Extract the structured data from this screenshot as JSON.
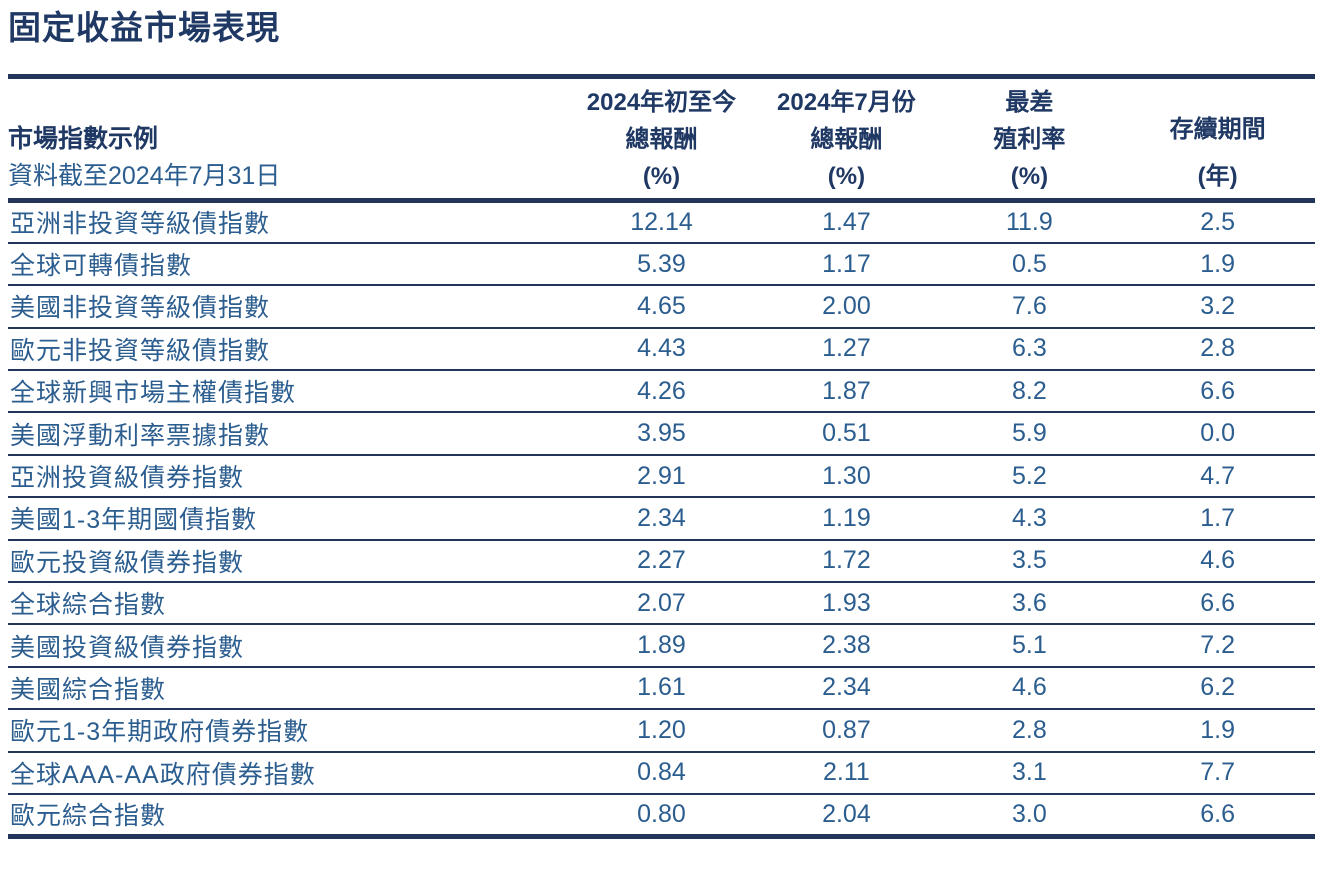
{
  "title": "固定收益市場表現",
  "colors": {
    "navy": "#1F3864",
    "line": "#24355C",
    "steel": "#2B5D8F",
    "background": "#FFFFFF"
  },
  "table": {
    "header": {
      "index_title": "市場指數示例",
      "index_subtitle": "資料截至2024年7月31日",
      "cols": [
        {
          "l1": "2024年初至今",
          "l2": "總報酬",
          "l3": "(%)"
        },
        {
          "l1": "2024年7月份",
          "l2": "總報酬",
          "l3": "(%)"
        },
        {
          "l1": "最差",
          "l2": "殖利率",
          "l3": "(%)"
        },
        {
          "l1": "",
          "l2": "存續期間",
          "l3": "(年)"
        }
      ]
    },
    "rows": [
      [
        "亞洲非投資等級債指數",
        "12.14",
        "1.47",
        "11.9",
        "2.5"
      ],
      [
        "全球可轉債指數",
        "5.39",
        "1.17",
        "0.5",
        "1.9"
      ],
      [
        "美國非投資等級債指數",
        "4.65",
        "2.00",
        "7.6",
        "3.2"
      ],
      [
        "歐元非投資等級債指數",
        "4.43",
        "1.27",
        "6.3",
        "2.8"
      ],
      [
        "全球新興市場主權債指數",
        "4.26",
        "1.87",
        "8.2",
        "6.6"
      ],
      [
        "美國浮動利率票據指數",
        "3.95",
        "0.51",
        "5.9",
        "0.0"
      ],
      [
        "亞洲投資級債券指數",
        "2.91",
        "1.30",
        "5.2",
        "4.7"
      ],
      [
        "美國1-3年期國債指數",
        "2.34",
        "1.19",
        "4.3",
        "1.7"
      ],
      [
        "歐元投資級債券指數",
        "2.27",
        "1.72",
        "3.5",
        "4.6"
      ],
      [
        "全球綜合指數",
        "2.07",
        "1.93",
        "3.6",
        "6.6"
      ],
      [
        "美國投資級債券指數",
        "1.89",
        "2.38",
        "5.1",
        "7.2"
      ],
      [
        "美國綜合指數",
        "1.61",
        "2.34",
        "4.6",
        "6.2"
      ],
      [
        "歐元1-3年期政府債券指數",
        "1.20",
        "0.87",
        "2.8",
        "1.9"
      ],
      [
        "全球AAA-AA政府債券指數",
        "0.84",
        "2.11",
        "3.1",
        "7.7"
      ],
      [
        "歐元綜合指數",
        "0.80",
        "2.04",
        "3.0",
        "6.6"
      ]
    ]
  },
  "chart_data": {
    "type": "table",
    "title": "固定收益市場表現",
    "as_of": "資料截至2024年7月31日",
    "columns": [
      "市場指數示例",
      "2024年初至今總報酬(%)",
      "2024年7月份總報酬(%)",
      "最差殖利率(%)",
      "存續期間(年)"
    ],
    "rows": [
      {
        "index": "亞洲非投資等級債指數",
        "ytd_return_pct": 12.14,
        "jul_2024_return_pct": 1.47,
        "yield_to_worst_pct": 11.9,
        "duration_years": 2.5
      },
      {
        "index": "全球可轉債指數",
        "ytd_return_pct": 5.39,
        "jul_2024_return_pct": 1.17,
        "yield_to_worst_pct": 0.5,
        "duration_years": 1.9
      },
      {
        "index": "美國非投資等級債指數",
        "ytd_return_pct": 4.65,
        "jul_2024_return_pct": 2.0,
        "yield_to_worst_pct": 7.6,
        "duration_years": 3.2
      },
      {
        "index": "歐元非投資等級債指數",
        "ytd_return_pct": 4.43,
        "jul_2024_return_pct": 1.27,
        "yield_to_worst_pct": 6.3,
        "duration_years": 2.8
      },
      {
        "index": "全球新興市場主權債指數",
        "ytd_return_pct": 4.26,
        "jul_2024_return_pct": 1.87,
        "yield_to_worst_pct": 8.2,
        "duration_years": 6.6
      },
      {
        "index": "美國浮動利率票據指數",
        "ytd_return_pct": 3.95,
        "jul_2024_return_pct": 0.51,
        "yield_to_worst_pct": 5.9,
        "duration_years": 0.0
      },
      {
        "index": "亞洲投資級債券指數",
        "ytd_return_pct": 2.91,
        "jul_2024_return_pct": 1.3,
        "yield_to_worst_pct": 5.2,
        "duration_years": 4.7
      },
      {
        "index": "美國1-3年期國債指數",
        "ytd_return_pct": 2.34,
        "jul_2024_return_pct": 1.19,
        "yield_to_worst_pct": 4.3,
        "duration_years": 1.7
      },
      {
        "index": "歐元投資級債券指數",
        "ytd_return_pct": 2.27,
        "jul_2024_return_pct": 1.72,
        "yield_to_worst_pct": 3.5,
        "duration_years": 4.6
      },
      {
        "index": "全球綜合指數",
        "ytd_return_pct": 2.07,
        "jul_2024_return_pct": 1.93,
        "yield_to_worst_pct": 3.6,
        "duration_years": 6.6
      },
      {
        "index": "美國投資級債券指數",
        "ytd_return_pct": 1.89,
        "jul_2024_return_pct": 2.38,
        "yield_to_worst_pct": 5.1,
        "duration_years": 7.2
      },
      {
        "index": "美國綜合指數",
        "ytd_return_pct": 1.61,
        "jul_2024_return_pct": 2.34,
        "yield_to_worst_pct": 4.6,
        "duration_years": 6.2
      },
      {
        "index": "歐元1-3年期政府債券指數",
        "ytd_return_pct": 1.2,
        "jul_2024_return_pct": 0.87,
        "yield_to_worst_pct": 2.8,
        "duration_years": 1.9
      },
      {
        "index": "全球AAA-AA政府債券指數",
        "ytd_return_pct": 0.84,
        "jul_2024_return_pct": 2.11,
        "yield_to_worst_pct": 3.1,
        "duration_years": 7.7
      },
      {
        "index": "歐元綜合指數",
        "ytd_return_pct": 0.8,
        "jul_2024_return_pct": 2.04,
        "yield_to_worst_pct": 3.0,
        "duration_years": 6.6
      }
    ]
  }
}
